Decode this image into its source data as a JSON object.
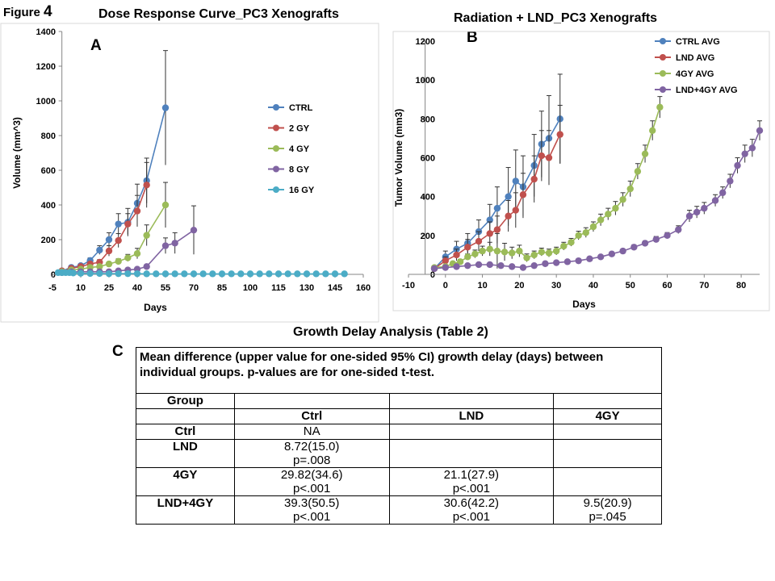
{
  "figure": {
    "label": "Figure",
    "number": "4"
  },
  "panels": [
    {
      "letter": "A",
      "title": "Dose Response Curve_PC3 Xenografts"
    },
    {
      "letter": "B",
      "title": "Radiation + LND_PC3 Xenografts"
    },
    {
      "letter": "C",
      "title": "Growth Delay Analysis (Table 2)"
    }
  ],
  "chart_data": [
    {
      "type": "line",
      "title": "Dose Response Curve_PC3 Xenografts",
      "xlabel": "Days",
      "ylabel": "Volume (mm^3)",
      "xlim": [
        -5,
        160
      ],
      "ylim": [
        0,
        1400
      ],
      "xticks": [
        "-5",
        "10",
        "25",
        "40",
        "55",
        "70",
        "85",
        "100",
        "115",
        "130",
        "145",
        "160"
      ],
      "yticks": [
        "0",
        "200",
        "400",
        "600",
        "800",
        "1000",
        "1200",
        "1400"
      ],
      "legend_position": "right",
      "series": [
        {
          "name": "CTRL",
          "color": "#4f81bd",
          "x": [
            0,
            5,
            10,
            15,
            20,
            25,
            30,
            35,
            40,
            45,
            55
          ],
          "y": [
            20,
            40,
            50,
            80,
            140,
            200,
            290,
            300,
            410,
            540,
            960
          ],
          "err": [
            5,
            8,
            10,
            15,
            25,
            40,
            60,
            80,
            110,
            130,
            330
          ]
        },
        {
          "name": "2 GY",
          "color": "#c0504d",
          "x": [
            0,
            5,
            10,
            15,
            20,
            25,
            30,
            35,
            40,
            45
          ],
          "y": [
            20,
            35,
            45,
            60,
            70,
            135,
            195,
            290,
            365,
            515
          ],
          "err": [
            5,
            8,
            10,
            12,
            15,
            30,
            40,
            60,
            90,
            130
          ]
        },
        {
          "name": "4 GY",
          "color": "#9bbb59",
          "x": [
            0,
            5,
            10,
            15,
            20,
            25,
            30,
            35,
            40,
            45,
            55
          ],
          "y": [
            15,
            25,
            30,
            40,
            45,
            60,
            75,
            95,
            120,
            225,
            400
          ],
          "err": [
            4,
            5,
            6,
            8,
            10,
            12,
            15,
            20,
            30,
            60,
            130
          ]
        },
        {
          "name": "8 GY",
          "color": "#8064a2",
          "x": [
            0,
            5,
            10,
            15,
            20,
            25,
            30,
            35,
            40,
            45,
            55,
            60,
            70
          ],
          "y": [
            10,
            15,
            15,
            15,
            15,
            15,
            20,
            25,
            30,
            45,
            165,
            180,
            255
          ],
          "err": [
            2,
            3,
            3,
            3,
            3,
            3,
            4,
            5,
            6,
            10,
            45,
            60,
            140
          ]
        },
        {
          "name": "16 GY",
          "color": "#4bacc6",
          "x": [
            -2,
            0,
            2,
            4,
            6,
            10,
            15,
            20,
            25,
            30,
            35,
            40,
            45,
            50,
            55,
            60,
            65,
            70,
            75,
            80,
            85,
            90,
            95,
            100,
            105,
            110,
            115,
            120,
            125,
            130,
            135,
            140,
            145,
            150
          ],
          "y": [
            10,
            10,
            10,
            10,
            8,
            6,
            5,
            5,
            4,
            4,
            4,
            4,
            3,
            3,
            3,
            3,
            3,
            3,
            3,
            3,
            3,
            3,
            3,
            3,
            3,
            3,
            3,
            3,
            3,
            3,
            3,
            3,
            3,
            3
          ],
          "err": []
        }
      ]
    },
    {
      "type": "line",
      "title": "Radiation + LND_PC3 Xenografts",
      "xlabel": "Days",
      "ylabel": "Tumor Volume (mm3)",
      "xlim": [
        -10,
        85
      ],
      "ylim": [
        0,
        1200
      ],
      "xticks": [
        "-10",
        "0",
        "10",
        "20",
        "30",
        "40",
        "50",
        "60",
        "70",
        "80"
      ],
      "yticks": [
        "0",
        "200",
        "400",
        "600",
        "800",
        "1000",
        "1200"
      ],
      "legend_position": "top-right",
      "series": [
        {
          "name": "CTRL AVG",
          "color": "#4f81bd",
          "x": [
            -3,
            0,
            3,
            6,
            9,
            12,
            14,
            17,
            19,
            21,
            24,
            26,
            28,
            31
          ],
          "y": [
            30,
            90,
            130,
            160,
            220,
            280,
            340,
            400,
            480,
            450,
            560,
            670,
            700,
            800
          ],
          "err": [
            5,
            30,
            40,
            50,
            60,
            80,
            110,
            150,
            160,
            160,
            160,
            170,
            220,
            230
          ]
        },
        {
          "name": "LND AVG",
          "color": "#c0504d",
          "x": [
            -3,
            0,
            3,
            6,
            9,
            12,
            14,
            17,
            19,
            21,
            24,
            26,
            28,
            31
          ],
          "y": [
            30,
            70,
            100,
            140,
            170,
            210,
            230,
            300,
            330,
            410,
            490,
            610,
            600,
            720
          ],
          "err": [
            5,
            20,
            30,
            40,
            50,
            60,
            70,
            80,
            90,
            110,
            120,
            130,
            140,
            150
          ]
        },
        {
          "name": "4GY AVG",
          "color": "#9bbb59",
          "x": [
            -3,
            0,
            2,
            4,
            6,
            8,
            10,
            12,
            14,
            16,
            18,
            20,
            22,
            24,
            26,
            28,
            30,
            32,
            34,
            36,
            38,
            40,
            42,
            44,
            46,
            48,
            50,
            52,
            54,
            56,
            58
          ],
          "y": [
            35,
            40,
            55,
            65,
            90,
            105,
            120,
            130,
            120,
            115,
            110,
            120,
            85,
            100,
            115,
            110,
            120,
            145,
            165,
            200,
            215,
            245,
            280,
            310,
            340,
            385,
            440,
            530,
            620,
            740,
            860
          ],
          "err": [
            5,
            8,
            10,
            12,
            15,
            20,
            25,
            35,
            90,
            45,
            30,
            30,
            20,
            20,
            20,
            20,
            20,
            20,
            20,
            22,
            25,
            25,
            30,
            30,
            35,
            35,
            40,
            40,
            45,
            50,
            55
          ]
        },
        {
          "name": "LND+4GY AVG",
          "color": "#8064a2",
          "x": [
            -3,
            0,
            3,
            6,
            9,
            12,
            15,
            18,
            21,
            24,
            27,
            30,
            33,
            36,
            39,
            42,
            45,
            48,
            51,
            54,
            57,
            60,
            63,
            66,
            68,
            70,
            73,
            75,
            77,
            79,
            81,
            83,
            85
          ],
          "y": [
            30,
            35,
            40,
            45,
            50,
            50,
            45,
            40,
            35,
            45,
            55,
            60,
            65,
            70,
            80,
            90,
            105,
            120,
            140,
            160,
            180,
            200,
            230,
            300,
            320,
            340,
            380,
            420,
            480,
            560,
            620,
            650,
            740
          ],
          "err": [
            5,
            5,
            5,
            5,
            5,
            5,
            5,
            5,
            5,
            5,
            6,
            6,
            6,
            6,
            8,
            8,
            10,
            10,
            12,
            12,
            15,
            15,
            20,
            30,
            30,
            30,
            30,
            30,
            35,
            40,
            45,
            45,
            50
          ]
        }
      ]
    }
  ],
  "table": {
    "caption": "Mean difference (upper value for one-sided 95% CI) growth delay (days) between individual groups.  p-values are for one-sided t-test.",
    "group_label": "Group",
    "columns": [
      "Ctrl",
      "LND",
      "4GY"
    ],
    "rows": [
      {
        "label": "Ctrl",
        "cells": [
          {
            "v": "NA",
            "p": ""
          },
          {
            "v": "",
            "p": ""
          },
          {
            "v": "",
            "p": ""
          }
        ]
      },
      {
        "label": "LND",
        "cells": [
          {
            "v": "8.72(15.0)",
            "p": "p=.008"
          },
          {
            "v": "",
            "p": ""
          },
          {
            "v": "",
            "p": ""
          }
        ]
      },
      {
        "label": "4GY",
        "cells": [
          {
            "v": "29.82(34.6)",
            "p": "p<.001"
          },
          {
            "v": "21.1(27.9)",
            "p": "p<.001"
          },
          {
            "v": "",
            "p": ""
          }
        ]
      },
      {
        "label": "LND+4GY",
        "cells": [
          {
            "v": "39.3(50.5)",
            "p": "p<.001"
          },
          {
            "v": "30.6(42.2)",
            "p": "p<.001"
          },
          {
            "v": "9.5(20.9)",
            "p": "p=.045"
          }
        ]
      }
    ]
  }
}
